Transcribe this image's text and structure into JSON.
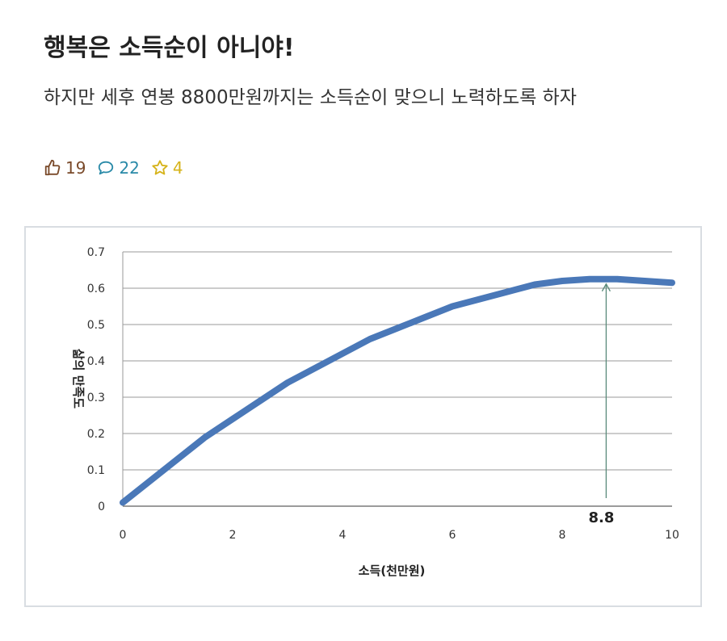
{
  "post": {
    "title": "행복은 소득순이 아니야!",
    "subtitle": "하지만 세후 연봉 8800만원까지는 소득순이 맞으니 노력하도록 하자",
    "likes": "19",
    "comments": "22",
    "stars": "4",
    "colors": {
      "like": "#7a4a2a",
      "comment": "#2a8aa8",
      "star": "#d6b31a"
    }
  },
  "chart_data": {
    "type": "line",
    "title": "",
    "xlabel": "소득(천만원)",
    "ylabel": "삶의 만족도",
    "xlim": [
      0,
      10
    ],
    "ylim": [
      0,
      0.7
    ],
    "xticks": [
      "0",
      "2",
      "4",
      "6",
      "8",
      "10"
    ],
    "yticks": [
      "0",
      "0.1",
      "0.2",
      "0.3",
      "0.4",
      "0.5",
      "0.6",
      "0.7"
    ],
    "grid": true,
    "series": [
      {
        "color": "#4a78b8",
        "x": [
          0,
          0.25,
          0.5,
          0.75,
          1,
          1.5,
          2,
          2.5,
          3,
          3.5,
          4,
          4.5,
          5,
          5.5,
          6,
          6.5,
          7,
          7.5,
          8,
          8.5,
          8.8,
          9,
          9.5,
          10
        ],
        "y": [
          0.01,
          0.04,
          0.07,
          0.1,
          0.13,
          0.19,
          0.24,
          0.29,
          0.34,
          0.38,
          0.42,
          0.46,
          0.49,
          0.52,
          0.55,
          0.57,
          0.59,
          0.61,
          0.62,
          0.625,
          0.625,
          0.625,
          0.62,
          0.615
        ]
      }
    ],
    "annotation": {
      "x": 8.8,
      "label": "8.8"
    }
  }
}
